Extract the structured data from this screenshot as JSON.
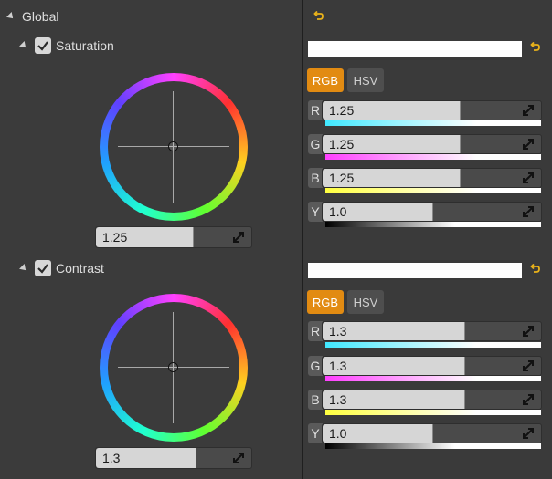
{
  "global": {
    "label": "Global"
  },
  "saturation": {
    "label": "Saturation",
    "checked": true,
    "value": "1.25",
    "tabs": {
      "rgb": "RGB",
      "hsv": "HSV"
    },
    "channels": [
      {
        "letter": "R",
        "value": "1.25"
      },
      {
        "letter": "G",
        "value": "1.25"
      },
      {
        "letter": "B",
        "value": "1.25"
      },
      {
        "letter": "Y",
        "value": "1.0"
      }
    ]
  },
  "contrast": {
    "label": "Contrast",
    "checked": true,
    "value": "1.3",
    "tabs": {
      "rgb": "RGB",
      "hsv": "HSV"
    },
    "channels": [
      {
        "letter": "R",
        "value": "1.3"
      },
      {
        "letter": "G",
        "value": "1.3"
      },
      {
        "letter": "B",
        "value": "1.3"
      },
      {
        "letter": "Y",
        "value": "1.0"
      }
    ]
  },
  "colors": {
    "accent": "#e28b12",
    "r_track": "#40e8ff",
    "g_track": "#ff40ff",
    "b_track": "#ffff40"
  }
}
